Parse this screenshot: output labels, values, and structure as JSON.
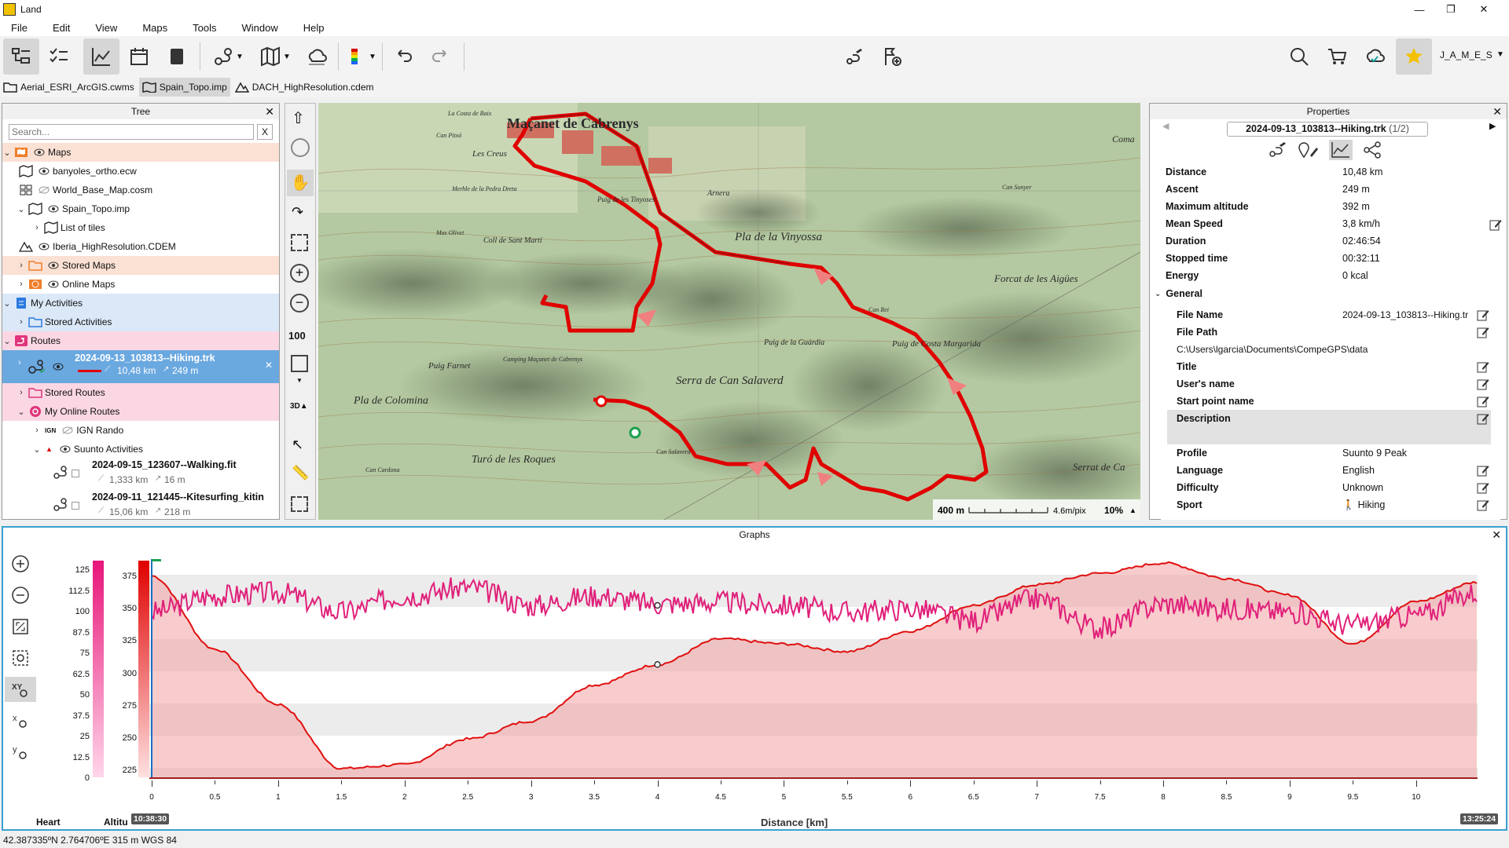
{
  "window": {
    "title": "Land",
    "min_label": "—",
    "max_label": "❐",
    "close_label": "✕"
  },
  "menu": [
    "File",
    "Edit",
    "View",
    "Maps",
    "Tools",
    "Window",
    "Help"
  ],
  "toolbar": {
    "user_label": "J_A_M_E_S"
  },
  "file_tabs": [
    {
      "label": "Aerial_ESRI_ArcGIS.cwms",
      "icon": "folder-icon"
    },
    {
      "label": "Spain_Topo.imp",
      "icon": "map-icon"
    },
    {
      "label": "DACH_HighResolution.cdem",
      "icon": "mountain-icon"
    }
  ],
  "tree": {
    "title": "Tree",
    "search_placeholder": "Search...",
    "clear_label": "X",
    "items": [
      {
        "label": "Maps"
      },
      {
        "label": "banyoles_ortho.ecw"
      },
      {
        "label": "World_Base_Map.cosm"
      },
      {
        "label": "Spain_Topo.imp"
      },
      {
        "label": "List of tiles"
      },
      {
        "label": "Iberia_HighResolution.CDEM"
      },
      {
        "label": "Stored Maps"
      },
      {
        "label": "Online Maps"
      },
      {
        "label": "My Activities"
      },
      {
        "label": "Stored Activities"
      },
      {
        "label": "Routes"
      },
      {
        "label": "2024-09-13_103813--Hiking.trk",
        "distance": "10,48 km",
        "ascent": "249 m"
      },
      {
        "label": "Stored Routes"
      },
      {
        "label": "My Online Routes"
      },
      {
        "label": "IGN Rando",
        "badge": "IGN"
      },
      {
        "label": "Suunto Activities"
      },
      {
        "label": "2024-09-15_123607--Walking.fit",
        "distance": "1,333 km",
        "ascent": "16 m"
      },
      {
        "label": "2024-09-11_121445--Kitesurfing_kitin",
        "distance": "15,06 km",
        "ascent": "218 m"
      }
    ]
  },
  "map": {
    "labels": [
      "Maçanet de Cabrenys",
      "Les Creus",
      "Can Pitxó",
      "La Costa de Baix",
      "Merhle de la Pedra Dreta",
      "Puig de les Tinyoses",
      "Arnera",
      "Pla de la Vinyossa",
      "Coll de Sant Martí",
      "Mas Olivet",
      "Puig Farnet",
      "Camping Maçanet de Cabrenys",
      "Pla de Colomina",
      "Serra de Can Salaverd",
      "Puig de la Guàrdia",
      "Puig de Costa Margarida",
      "Turó de les Roques",
      "Serrat de Ca",
      "Forcat de les Aigües",
      "Can Salaverd",
      "Can Cardona",
      "Can Rei",
      "Can Sunyer",
      "Coma"
    ],
    "scale_label": "400 m",
    "resolution": "4.6m/pix",
    "zoom": "10%"
  },
  "properties": {
    "title": "Properties",
    "file_selector": "2024-09-13_103813--Hiking.trk",
    "file_index": "(1/2)",
    "stats": [
      {
        "key": "Distance",
        "value": "10,48 km"
      },
      {
        "key": "Ascent",
        "value": "249 m"
      },
      {
        "key": "Maximum altitude",
        "value": "392 m"
      },
      {
        "key": "Mean Speed",
        "value": "3,8 km/h"
      },
      {
        "key": "Duration",
        "value": "02:46:54"
      },
      {
        "key": "Stopped time",
        "value": "00:32:11"
      },
      {
        "key": "Energy",
        "value": "0 kcal"
      }
    ],
    "general_label": "General",
    "file_name_key": "File Name",
    "file_name_value": "2024-09-13_103813--Hiking.tr",
    "file_path_key": "File Path",
    "file_path_value": "C:\\Users\\lgarcia\\Documents\\CompeGPS\\data",
    "fields": [
      {
        "key": "Title",
        "value": ""
      },
      {
        "key": "User's name",
        "value": ""
      },
      {
        "key": "Start point name",
        "value": ""
      },
      {
        "key": "Description",
        "value": ""
      }
    ],
    "details": [
      {
        "key": "Profile",
        "value": "Suunto 9 Peak"
      },
      {
        "key": "Language",
        "value": "English"
      },
      {
        "key": "Difficulty",
        "value": "Unknown"
      },
      {
        "key": "Sport",
        "value": "Hiking"
      }
    ]
  },
  "graphs": {
    "title": "Graphs",
    "y_left_label": "Heart",
    "y_right_label": "Altitu",
    "hr_ticks": [
      "125",
      "112.5",
      "100",
      "87.5",
      "75",
      "62.5",
      "50",
      "37.5",
      "25",
      "12.5",
      "0"
    ],
    "alt_ticks": [
      "375",
      "350",
      "325",
      "300",
      "275",
      "250",
      "225"
    ],
    "x_ticks": [
      "0",
      "0.5",
      "1",
      "1.5",
      "2",
      "2.5",
      "3",
      "3.5",
      "4",
      "4.5",
      "5",
      "5.5",
      "6",
      "6.5",
      "7",
      "7.5",
      "8",
      "8.5",
      "9",
      "9.5",
      "10"
    ],
    "x_label": "Distance [km]",
    "start_time": "10:38:30",
    "end_time": "13:25:24"
  },
  "chart_data": {
    "type": "line",
    "title": "",
    "xlabel": "Distance [km]",
    "x": [
      0,
      0.5,
      1,
      1.5,
      2,
      2.5,
      3,
      3.5,
      4,
      4.5,
      5,
      5.5,
      6,
      6.5,
      7,
      7.5,
      8,
      8.5,
      9,
      9.5,
      10,
      10.48
    ],
    "series": [
      {
        "name": "Altitu",
        "axis": "right",
        "ylim": [
          220,
          385
        ],
        "color": "#e01010",
        "values": [
          375,
          318,
          275,
          225,
          228,
          248,
          262,
          290,
          306,
          326,
          322,
          316,
          332,
          352,
          368,
          377,
          385,
          373,
          360,
          322,
          355,
          370
        ]
      },
      {
        "name": "Heart",
        "axis": "left",
        "ylim": [
          0,
          130
        ],
        "color": "#e0207a",
        "values": [
          100,
          110,
          112,
          100,
          110,
          115,
          104,
          110,
          105,
          106,
          104,
          100,
          102,
          95,
          108,
          90,
          105,
          102,
          100,
          92,
          98,
          112
        ]
      }
    ],
    "grid": true,
    "legend": "none"
  },
  "status": {
    "coords": "42.387335ºN 2.764706ºE  315 m  WGS 84"
  }
}
